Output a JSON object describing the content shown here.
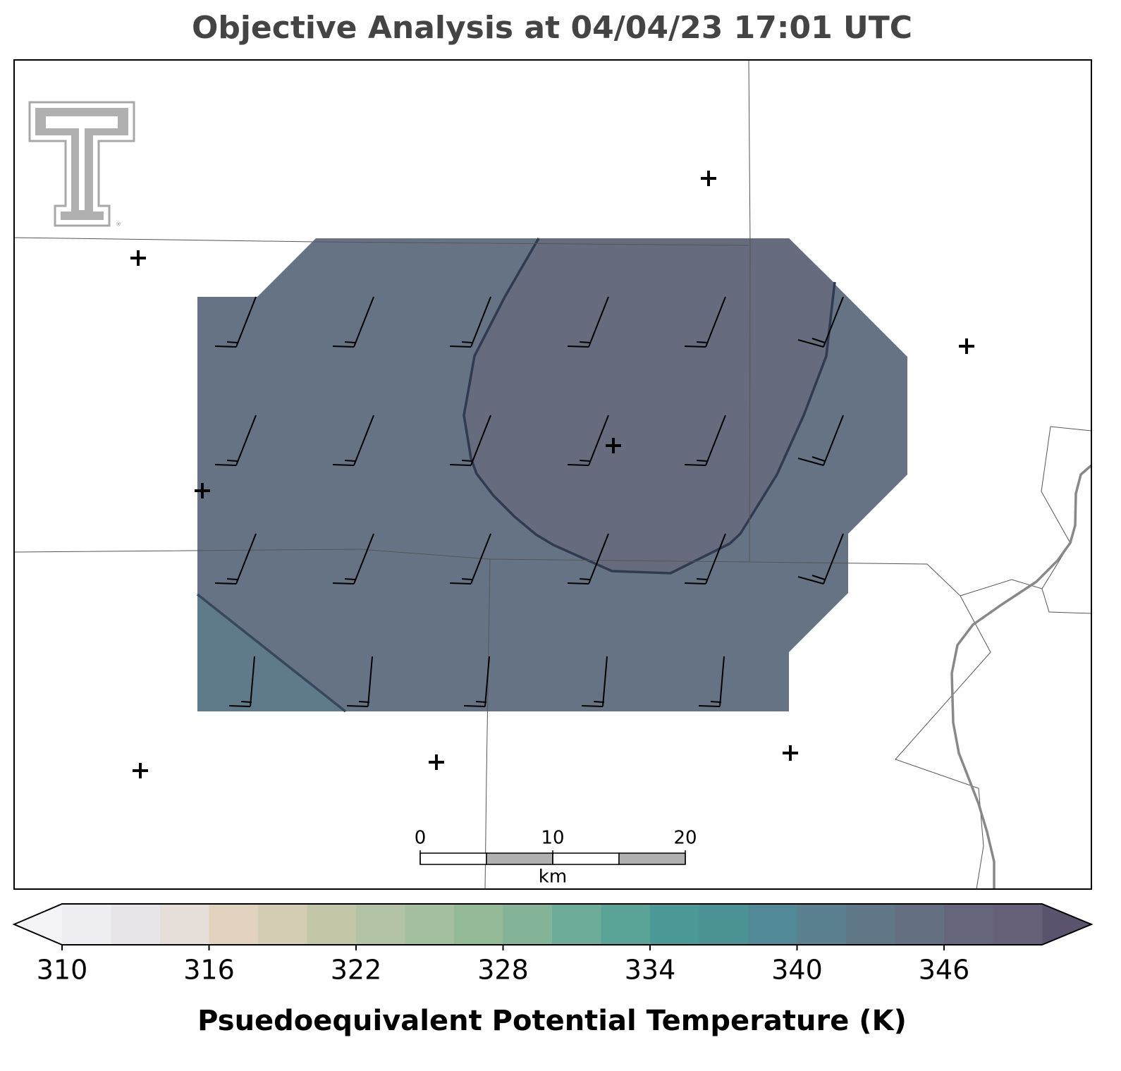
{
  "title": "Objective Analysis at 04/04/23 17:01 UTC",
  "colorbar": {
    "label": "Psuedoequivalent Potential Temperature (K)",
    "range": [
      310,
      350
    ],
    "ticks": [
      310,
      316,
      322,
      328,
      334,
      340,
      346
    ],
    "colors": [
      "#eeedf2",
      "#e8e5e8",
      "#e5ded9",
      "#e2d3be",
      "#d3cdb3",
      "#c3c7a8",
      "#b3c3a6",
      "#a3bf9f",
      "#93b997",
      "#84b498",
      "#6eac9a",
      "#5aa497",
      "#4c9a97",
      "#4a9294",
      "#518a96",
      "#5b8190",
      "#5f7786",
      "#646f82",
      "#65667c",
      "#655f77"
    ],
    "under_color": "#f3f3f8",
    "over_color": "#5b536d"
  },
  "scale_bar": {
    "ticks": [
      0,
      10,
      20
    ],
    "unit": "km"
  }
}
